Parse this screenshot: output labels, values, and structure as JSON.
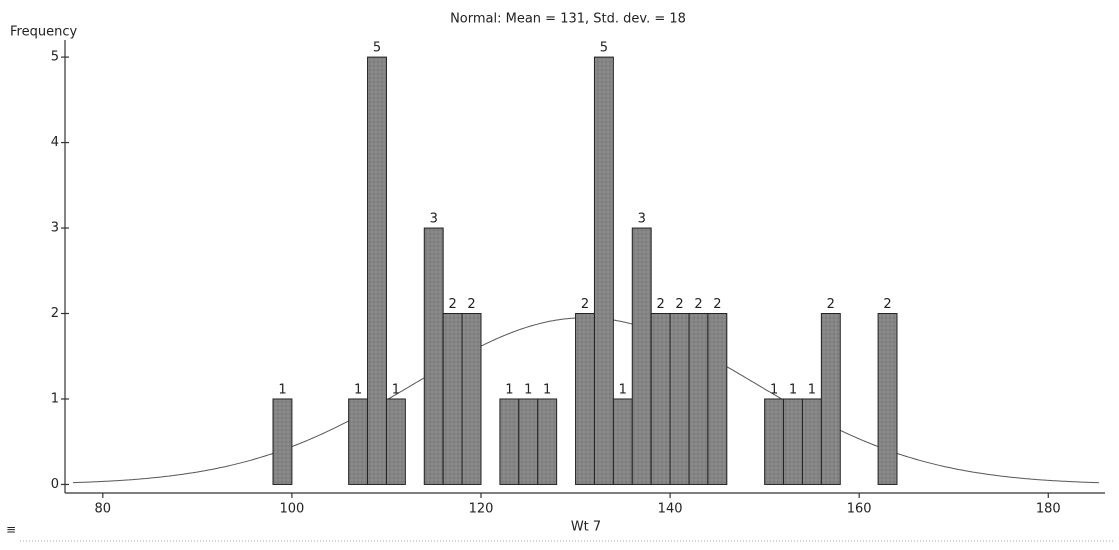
{
  "chart_data": {
    "type": "histogram",
    "title": "Normal: Mean = 131, Std. dev. = 18",
    "x_label": "Wt 7",
    "y_label": "Frequency",
    "bins": [
      98,
      100,
      102,
      104,
      106,
      108,
      110,
      112,
      114,
      116,
      118,
      120,
      122,
      124,
      126,
      128,
      130,
      132,
      134,
      136,
      138,
      140,
      142,
      144,
      146,
      148,
      150,
      152,
      154,
      156,
      158,
      160,
      162,
      164
    ],
    "values": [
      1,
      0,
      0,
      0,
      1,
      5,
      1,
      0,
      3,
      2,
      2,
      0,
      1,
      1,
      1,
      0,
      2,
      5,
      1,
      3,
      2,
      2,
      2,
      2,
      0,
      0,
      1,
      1,
      1,
      2,
      0,
      0,
      2
    ],
    "color": "#8c8c8c",
    "normal_fit": {
      "mean": 131,
      "sd": 18
    },
    "xlim": [
      76,
      186
    ],
    "ylim": [
      -0.1,
      5.2
    ],
    "xticks": [
      80,
      100,
      120,
      140,
      160,
      180
    ],
    "yticks": [
      0,
      1,
      2,
      3,
      4,
      5
    ]
  }
}
